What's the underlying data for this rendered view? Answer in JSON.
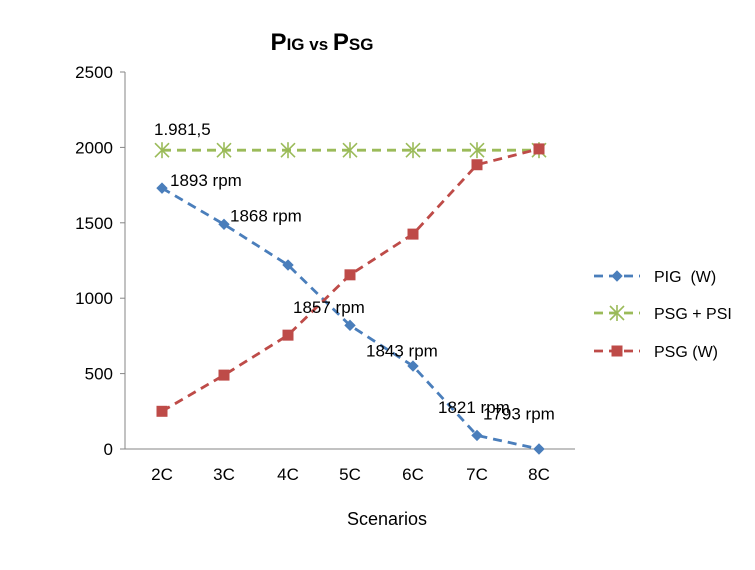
{
  "chart_data": {
    "type": "line",
    "title": {
      "main_1": "P",
      "sub_1": "IG",
      "mid": " vs ",
      "main_2": "P",
      "sub_2": "SG"
    },
    "xlabel": "Scenarios",
    "ylabel": "",
    "categories": [
      "2C",
      "3C",
      "4C",
      "5C",
      "6C",
      "7C",
      "8C"
    ],
    "ylim": [
      0,
      2500
    ],
    "yticks": [
      0,
      500,
      1000,
      1500,
      2000,
      2500
    ],
    "grid": false,
    "legend_position": "right",
    "series": [
      {
        "name": "PIG  (W)",
        "color": "#4a7ebb",
        "marker": "diamond",
        "dashed": true,
        "values": [
          1730,
          1490,
          1220,
          820,
          550,
          90,
          0
        ]
      },
      {
        "name": "PSG + PSI",
        "color": "#9bbb59",
        "marker": "asterisk",
        "dashed": true,
        "values": [
          1981.5,
          1981.5,
          1981.5,
          1981.5,
          1981.5,
          1981.5,
          1981.5
        ]
      },
      {
        "name": "PSG (W)",
        "color": "#be4b48",
        "marker": "square",
        "dashed": true,
        "values": [
          250,
          490,
          755,
          1155,
          1425,
          1885,
          1990
        ]
      }
    ],
    "annotations": [
      {
        "text": "1.981,5",
        "category": "2C",
        "value": 1981.5
      },
      {
        "text": "1893 rpm",
        "category": "2C",
        "value": 1730
      },
      {
        "text": "1868 rpm",
        "category": "3C",
        "value": 1490
      },
      {
        "text": "1857 rpm",
        "category": "4C",
        "value": 1220
      },
      {
        "text": "1843 rpm",
        "category": "5C",
        "value": 820
      },
      {
        "text": "1821 rpm",
        "category": "6C",
        "value": 550
      },
      {
        "text": "1793 rpm",
        "category": "7C",
        "value": 90
      }
    ]
  }
}
